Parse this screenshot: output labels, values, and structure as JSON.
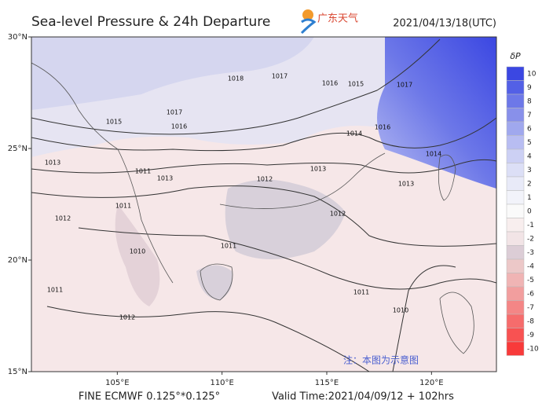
{
  "header": {
    "title": "Sea-level Pressure & 24h Departure",
    "logo_text": "广东天气",
    "time": "2021/04/13/18(UTC)"
  },
  "map": {
    "lon_range": [
      100.9,
      123.1
    ],
    "lat_range": [
      15,
      30
    ],
    "lat_ticks": [
      {
        "value": 15,
        "label": "15°N"
      },
      {
        "value": 20,
        "label": "20°N"
      },
      {
        "value": 25,
        "label": "25°N"
      },
      {
        "value": 30,
        "label": "30°N"
      }
    ],
    "lon_ticks": [
      {
        "value": 105,
        "label": "105°E"
      },
      {
        "value": 110,
        "label": "110°E"
      },
      {
        "value": 115,
        "label": "115°E"
      },
      {
        "value": 120,
        "label": "120°E"
      }
    ],
    "isobar_labels": [
      "1018",
      "1017",
      "1017",
      "1016",
      "1015",
      "1016",
      "1015",
      "1016",
      "1017",
      "1014",
      "1013",
      "1014",
      "1013",
      "1012",
      "1012",
      "1011",
      "1011",
      "1012",
      "1013",
      "1010",
      "1011",
      "1012",
      "1011",
      "1010",
      "1011",
      "1013"
    ],
    "note": "注：本图为示意图"
  },
  "colorbar": {
    "label": "δP",
    "ticks": [
      10,
      9,
      8,
      7,
      6,
      5,
      4,
      3,
      2,
      1,
      0,
      -1,
      -2,
      -3,
      -4,
      -5,
      -6,
      -7,
      -8,
      -9,
      -10
    ],
    "colors": [
      "#3b47e2",
      "#5360e6",
      "#6d78e8",
      "#8890ea",
      "#a0a8ee",
      "#b8bdf2",
      "#ccd0f4",
      "#dcdff6",
      "#e8eaf8",
      "#f2f3fa",
      "#fafafa",
      "#f8eeee",
      "#f2e4e6",
      "#dccdd6",
      "#ecc8c8",
      "#f0b4b4",
      "#f29e9e",
      "#f48686",
      "#f66c6c",
      "#f85252",
      "#f83a3a"
    ]
  },
  "footer": {
    "model": "FINE ECMWF 0.125°*0.125°",
    "valid": "Valid Time:2021/04/09/12 + 102hrs"
  }
}
